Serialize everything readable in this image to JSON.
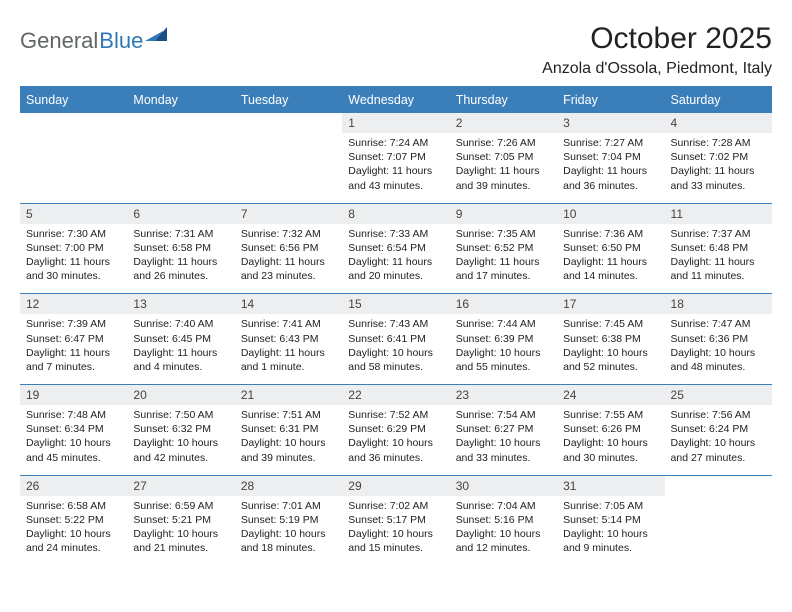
{
  "logo": {
    "text1": "General",
    "text2": "Blue"
  },
  "title": "October 2025",
  "location": "Anzola d'Ossola, Piedmont, Italy",
  "colors": {
    "brand_blue": "#3b7fba",
    "header_bg": "#3b7fba",
    "daynum_bg": "#eceeef",
    "border": "#3b7fba",
    "text": "#222222",
    "logo_gray": "#606568"
  },
  "typography": {
    "title_fontsize": 30,
    "location_fontsize": 16,
    "dayhead_fontsize": 12.5,
    "daynum_fontsize": 12,
    "body_fontsize": 10.5
  },
  "day_headers": [
    "Sunday",
    "Monday",
    "Tuesday",
    "Wednesday",
    "Thursday",
    "Friday",
    "Saturday"
  ],
  "weeks": [
    [
      null,
      null,
      null,
      {
        "n": "1",
        "sunrise": "7:24 AM",
        "sunset": "7:07 PM",
        "day_h": 11,
        "day_m": 43
      },
      {
        "n": "2",
        "sunrise": "7:26 AM",
        "sunset": "7:05 PM",
        "day_h": 11,
        "day_m": 39
      },
      {
        "n": "3",
        "sunrise": "7:27 AM",
        "sunset": "7:04 PM",
        "day_h": 11,
        "day_m": 36
      },
      {
        "n": "4",
        "sunrise": "7:28 AM",
        "sunset": "7:02 PM",
        "day_h": 11,
        "day_m": 33
      }
    ],
    [
      {
        "n": "5",
        "sunrise": "7:30 AM",
        "sunset": "7:00 PM",
        "day_h": 11,
        "day_m": 30
      },
      {
        "n": "6",
        "sunrise": "7:31 AM",
        "sunset": "6:58 PM",
        "day_h": 11,
        "day_m": 26
      },
      {
        "n": "7",
        "sunrise": "7:32 AM",
        "sunset": "6:56 PM",
        "day_h": 11,
        "day_m": 23
      },
      {
        "n": "8",
        "sunrise": "7:33 AM",
        "sunset": "6:54 PM",
        "day_h": 11,
        "day_m": 20
      },
      {
        "n": "9",
        "sunrise": "7:35 AM",
        "sunset": "6:52 PM",
        "day_h": 11,
        "day_m": 17
      },
      {
        "n": "10",
        "sunrise": "7:36 AM",
        "sunset": "6:50 PM",
        "day_h": 11,
        "day_m": 14
      },
      {
        "n": "11",
        "sunrise": "7:37 AM",
        "sunset": "6:48 PM",
        "day_h": 11,
        "day_m": 11
      }
    ],
    [
      {
        "n": "12",
        "sunrise": "7:39 AM",
        "sunset": "6:47 PM",
        "day_h": 11,
        "day_m": 7
      },
      {
        "n": "13",
        "sunrise": "7:40 AM",
        "sunset": "6:45 PM",
        "day_h": 11,
        "day_m": 4
      },
      {
        "n": "14",
        "sunrise": "7:41 AM",
        "sunset": "6:43 PM",
        "day_h": 11,
        "day_m": 1
      },
      {
        "n": "15",
        "sunrise": "7:43 AM",
        "sunset": "6:41 PM",
        "day_h": 10,
        "day_m": 58
      },
      {
        "n": "16",
        "sunrise": "7:44 AM",
        "sunset": "6:39 PM",
        "day_h": 10,
        "day_m": 55
      },
      {
        "n": "17",
        "sunrise": "7:45 AM",
        "sunset": "6:38 PM",
        "day_h": 10,
        "day_m": 52
      },
      {
        "n": "18",
        "sunrise": "7:47 AM",
        "sunset": "6:36 PM",
        "day_h": 10,
        "day_m": 48
      }
    ],
    [
      {
        "n": "19",
        "sunrise": "7:48 AM",
        "sunset": "6:34 PM",
        "day_h": 10,
        "day_m": 45
      },
      {
        "n": "20",
        "sunrise": "7:50 AM",
        "sunset": "6:32 PM",
        "day_h": 10,
        "day_m": 42
      },
      {
        "n": "21",
        "sunrise": "7:51 AM",
        "sunset": "6:31 PM",
        "day_h": 10,
        "day_m": 39
      },
      {
        "n": "22",
        "sunrise": "7:52 AM",
        "sunset": "6:29 PM",
        "day_h": 10,
        "day_m": 36
      },
      {
        "n": "23",
        "sunrise": "7:54 AM",
        "sunset": "6:27 PM",
        "day_h": 10,
        "day_m": 33
      },
      {
        "n": "24",
        "sunrise": "7:55 AM",
        "sunset": "6:26 PM",
        "day_h": 10,
        "day_m": 30
      },
      {
        "n": "25",
        "sunrise": "7:56 AM",
        "sunset": "6:24 PM",
        "day_h": 10,
        "day_m": 27
      }
    ],
    [
      {
        "n": "26",
        "sunrise": "6:58 AM",
        "sunset": "5:22 PM",
        "day_h": 10,
        "day_m": 24
      },
      {
        "n": "27",
        "sunrise": "6:59 AM",
        "sunset": "5:21 PM",
        "day_h": 10,
        "day_m": 21
      },
      {
        "n": "28",
        "sunrise": "7:01 AM",
        "sunset": "5:19 PM",
        "day_h": 10,
        "day_m": 18
      },
      {
        "n": "29",
        "sunrise": "7:02 AM",
        "sunset": "5:17 PM",
        "day_h": 10,
        "day_m": 15
      },
      {
        "n": "30",
        "sunrise": "7:04 AM",
        "sunset": "5:16 PM",
        "day_h": 10,
        "day_m": 12
      },
      {
        "n": "31",
        "sunrise": "7:05 AM",
        "sunset": "5:14 PM",
        "day_h": 10,
        "day_m": 9
      },
      null
    ]
  ],
  "labels": {
    "sunrise": "Sunrise:",
    "sunset": "Sunset:",
    "daylight": "Daylight:",
    "hours": "hours",
    "and": "and",
    "minute": "minute",
    "minutes": "minutes"
  }
}
